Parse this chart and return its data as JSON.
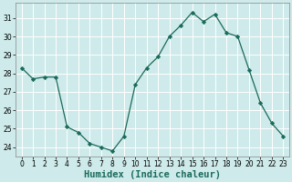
{
  "x": [
    0,
    1,
    2,
    3,
    4,
    5,
    6,
    7,
    8,
    9,
    10,
    11,
    12,
    13,
    14,
    15,
    16,
    17,
    18,
    19,
    20,
    21,
    22,
    23
  ],
  "y": [
    28.3,
    27.7,
    27.8,
    27.8,
    25.1,
    24.8,
    24.2,
    24.0,
    23.8,
    24.6,
    27.4,
    28.3,
    28.9,
    30.0,
    30.6,
    31.3,
    30.8,
    31.2,
    30.2,
    30.0,
    28.2,
    26.4,
    25.3,
    24.6
  ],
  "line_color": "#1a6b5a",
  "marker": "D",
  "marker_size": 2.2,
  "bg_color": "#ceeaea",
  "grid_color": "#ffffff",
  "xlabel": "Humidex (Indice chaleur)",
  "ylim": [
    23.5,
    31.8
  ],
  "xlim": [
    -0.5,
    23.5
  ],
  "yticks": [
    24,
    25,
    26,
    27,
    28,
    29,
    30,
    31
  ],
  "xticks": [
    0,
    1,
    2,
    3,
    4,
    5,
    6,
    7,
    8,
    9,
    10,
    11,
    12,
    13,
    14,
    15,
    16,
    17,
    18,
    19,
    20,
    21,
    22,
    23
  ],
  "tick_fontsize": 5.5,
  "xlabel_fontsize": 7.5,
  "spine_color": "#888888"
}
